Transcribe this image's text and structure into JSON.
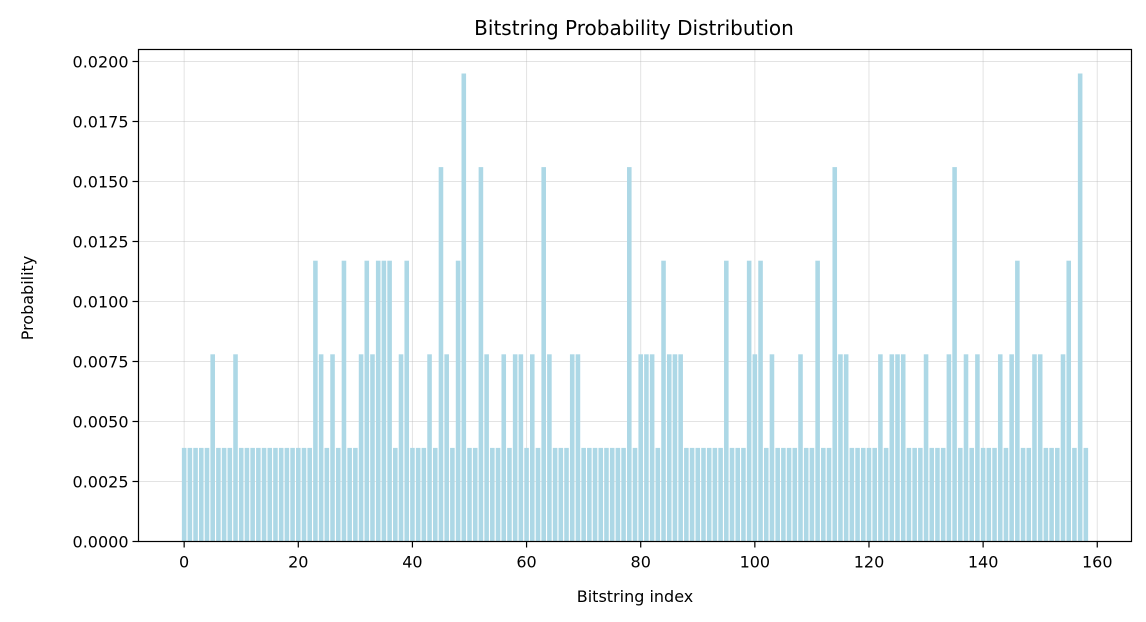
{
  "chart_data": {
    "type": "bar",
    "title": "Bitstring Probability Distribution",
    "xlabel": "Bitstring index",
    "ylabel": "Probability",
    "xlim": [
      -8,
      166
    ],
    "ylim": [
      0,
      0.0205
    ],
    "grid": true,
    "bar_color": "#add8e6",
    "x_ticks": [
      {
        "value": 0,
        "label": "0"
      },
      {
        "value": 20,
        "label": "20"
      },
      {
        "value": 40,
        "label": "40"
      },
      {
        "value": 60,
        "label": "60"
      },
      {
        "value": 80,
        "label": "80"
      },
      {
        "value": 100,
        "label": "100"
      },
      {
        "value": 120,
        "label": "120"
      },
      {
        "value": 140,
        "label": "140"
      },
      {
        "value": 160,
        "label": "160"
      }
    ],
    "y_ticks": [
      {
        "value": 0.0,
        "label": "0.0000"
      },
      {
        "value": 0.0025,
        "label": "0.0025"
      },
      {
        "value": 0.005,
        "label": "0.0050"
      },
      {
        "value": 0.0075,
        "label": "0.0075"
      },
      {
        "value": 0.01,
        "label": "0.0100"
      },
      {
        "value": 0.0125,
        "label": "0.0125"
      },
      {
        "value": 0.015,
        "label": "0.0150"
      },
      {
        "value": 0.0175,
        "label": "0.0175"
      },
      {
        "value": 0.02,
        "label": "0.0200"
      }
    ],
    "x": [
      0,
      1,
      2,
      3,
      4,
      5,
      6,
      7,
      8,
      9,
      10,
      11,
      12,
      13,
      14,
      15,
      16,
      17,
      18,
      19,
      20,
      21,
      22,
      23,
      24,
      25,
      26,
      27,
      28,
      29,
      30,
      31,
      32,
      33,
      34,
      35,
      36,
      37,
      38,
      39,
      40,
      41,
      42,
      43,
      44,
      45,
      46,
      47,
      48,
      49,
      50,
      51,
      52,
      53,
      54,
      55,
      56,
      57,
      58,
      59,
      60,
      61,
      62,
      63,
      64,
      65,
      66,
      67,
      68,
      69,
      70,
      71,
      72,
      73,
      74,
      75,
      76,
      77,
      78,
      79,
      80,
      81,
      82,
      83,
      84,
      85,
      86,
      87,
      88,
      89,
      90,
      91,
      92,
      93,
      94,
      95,
      96,
      97,
      98,
      99,
      100,
      101,
      102,
      103,
      104,
      105,
      106,
      107,
      108,
      109,
      110,
      111,
      112,
      113,
      114,
      115,
      116,
      117,
      118,
      119,
      120,
      121,
      122,
      123,
      124,
      125,
      126,
      127,
      128,
      129,
      130,
      131,
      132,
      133,
      134,
      135,
      136,
      137,
      138,
      139,
      140,
      141,
      142,
      143,
      144,
      145,
      146,
      147,
      148,
      149,
      150,
      151,
      152,
      153,
      154,
      155,
      156,
      157,
      158
    ],
    "values": [
      0.0039,
      0.0039,
      0.0039,
      0.0039,
      0.0039,
      0.0078,
      0.0039,
      0.0039,
      0.0039,
      0.0078,
      0.0039,
      0.0039,
      0.0039,
      0.0039,
      0.0039,
      0.0039,
      0.0039,
      0.0039,
      0.0039,
      0.0039,
      0.0039,
      0.0039,
      0.0039,
      0.0117,
      0.0078,
      0.0039,
      0.0078,
      0.0039,
      0.0117,
      0.0039,
      0.0039,
      0.0078,
      0.0117,
      0.0078,
      0.0117,
      0.0117,
      0.0117,
      0.0039,
      0.0078,
      0.0117,
      0.0039,
      0.0039,
      0.0039,
      0.0078,
      0.0039,
      0.0156,
      0.0078,
      0.0039,
      0.0117,
      0.0195,
      0.0039,
      0.0039,
      0.0156,
      0.0078,
      0.0039,
      0.0039,
      0.0078,
      0.0039,
      0.0078,
      0.0078,
      0.0039,
      0.0078,
      0.0039,
      0.0156,
      0.0078,
      0.0039,
      0.0039,
      0.0039,
      0.0078,
      0.0078,
      0.0039,
      0.0039,
      0.0039,
      0.0039,
      0.0039,
      0.0039,
      0.0039,
      0.0039,
      0.0156,
      0.0039,
      0.0078,
      0.0078,
      0.0078,
      0.0039,
      0.0117,
      0.0078,
      0.0078,
      0.0078,
      0.0039,
      0.0039,
      0.0039,
      0.0039,
      0.0039,
      0.0039,
      0.0039,
      0.0117,
      0.0039,
      0.0039,
      0.0039,
      0.0117,
      0.0078,
      0.0117,
      0.0039,
      0.0078,
      0.0039,
      0.0039,
      0.0039,
      0.0039,
      0.0078,
      0.0039,
      0.0039,
      0.0117,
      0.0039,
      0.0039,
      0.0156,
      0.0078,
      0.0078,
      0.0039,
      0.0039,
      0.0039,
      0.0039,
      0.0039,
      0.0078,
      0.0039,
      0.0078,
      0.0078,
      0.0078,
      0.0039,
      0.0039,
      0.0039,
      0.0078,
      0.0039,
      0.0039,
      0.0039,
      0.0078,
      0.0156,
      0.0039,
      0.0078,
      0.0039,
      0.0078,
      0.0039,
      0.0039,
      0.0039,
      0.0078,
      0.0039,
      0.0078,
      0.0117,
      0.0039,
      0.0039,
      0.0078,
      0.0078,
      0.0039,
      0.0039,
      0.0039,
      0.0078,
      0.0117,
      0.0039,
      0.0195,
      0.0039
    ]
  }
}
